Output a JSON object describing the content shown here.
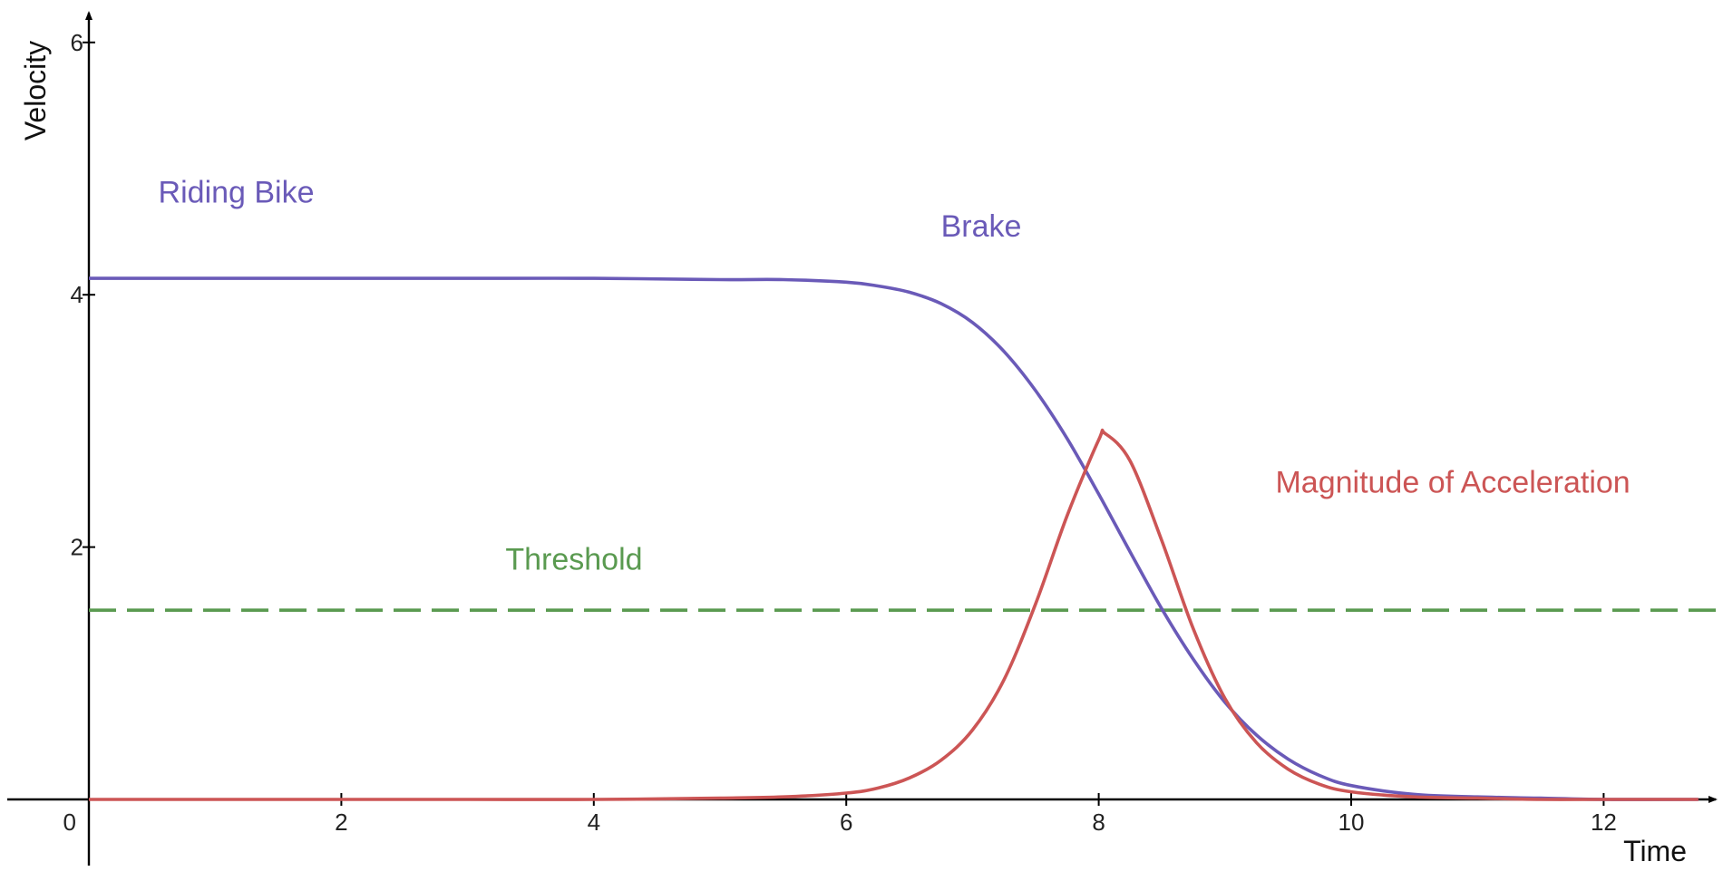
{
  "chart_data": {
    "type": "line",
    "title": "",
    "xlabel": "Time",
    "ylabel": "Velocity",
    "xlim": [
      -0.3,
      12.9
    ],
    "ylim": [
      -0.27,
      6.15
    ],
    "x_ticks": [
      0,
      2,
      4,
      6,
      8,
      10,
      12
    ],
    "x_tick_labels": [
      "0",
      "2",
      "4",
      "6",
      "8",
      "10",
      "12"
    ],
    "y_ticks": [
      2,
      4,
      6
    ],
    "y_tick_labels": [
      "2",
      "4",
      "6"
    ],
    "grid": false,
    "legend": "none",
    "series": [
      {
        "color": "#6a5ab8",
        "style": "solid",
        "x": [
          0,
          1,
          2,
          3,
          4,
          5,
          5.5,
          6,
          6.25,
          6.5,
          6.75,
          7,
          7.25,
          7.5,
          7.75,
          8,
          8.25,
          8.5,
          8.75,
          9,
          9.25,
          9.5,
          9.75,
          10,
          10.5,
          11,
          11.5,
          12,
          12.75
        ],
        "values": [
          4.13,
          4.13,
          4.13,
          4.13,
          4.13,
          4.12,
          4.12,
          4.1,
          4.07,
          4.02,
          3.93,
          3.78,
          3.55,
          3.24,
          2.86,
          2.42,
          1.96,
          1.51,
          1.11,
          0.77,
          0.51,
          0.32,
          0.19,
          0.11,
          0.04,
          0.02,
          0.01,
          0,
          0
        ]
      },
      {
        "color": "#cc5555",
        "style": "solid",
        "x": [
          0,
          1,
          2,
          3,
          4,
          5,
          5.5,
          6,
          6.25,
          6.5,
          6.75,
          7,
          7.25,
          7.5,
          7.75,
          8,
          8.05,
          8.25,
          8.5,
          8.75,
          9,
          9.25,
          9.5,
          9.75,
          10,
          10.5,
          11,
          11.5,
          12,
          12.75
        ],
        "values": [
          0,
          0,
          0,
          0,
          0,
          0.01,
          0.02,
          0.05,
          0.09,
          0.17,
          0.31,
          0.55,
          0.95,
          1.55,
          2.25,
          2.85,
          2.9,
          2.68,
          2.05,
          1.35,
          0.8,
          0.45,
          0.24,
          0.12,
          0.06,
          0.02,
          0.01,
          0,
          0,
          0
        ]
      },
      {
        "color": "#5a9a50",
        "style": "dashed",
        "x": [
          0,
          12.9
        ],
        "values": [
          1.5,
          1.5
        ]
      }
    ],
    "annotations": [
      {
        "text": "Riding Bike",
        "x": 0.55,
        "y": 4.73,
        "color": "#6a5ab8"
      },
      {
        "text": "Brake",
        "x": 6.75,
        "y": 4.46,
        "color": "#6a5ab8"
      },
      {
        "text": "Magnitude of Acceleration",
        "x": 9.4,
        "y": 2.43,
        "color": "#cc5555"
      },
      {
        "text": "Threshold",
        "x": 3.3,
        "y": 1.82,
        "color": "#5a9a50"
      }
    ]
  }
}
